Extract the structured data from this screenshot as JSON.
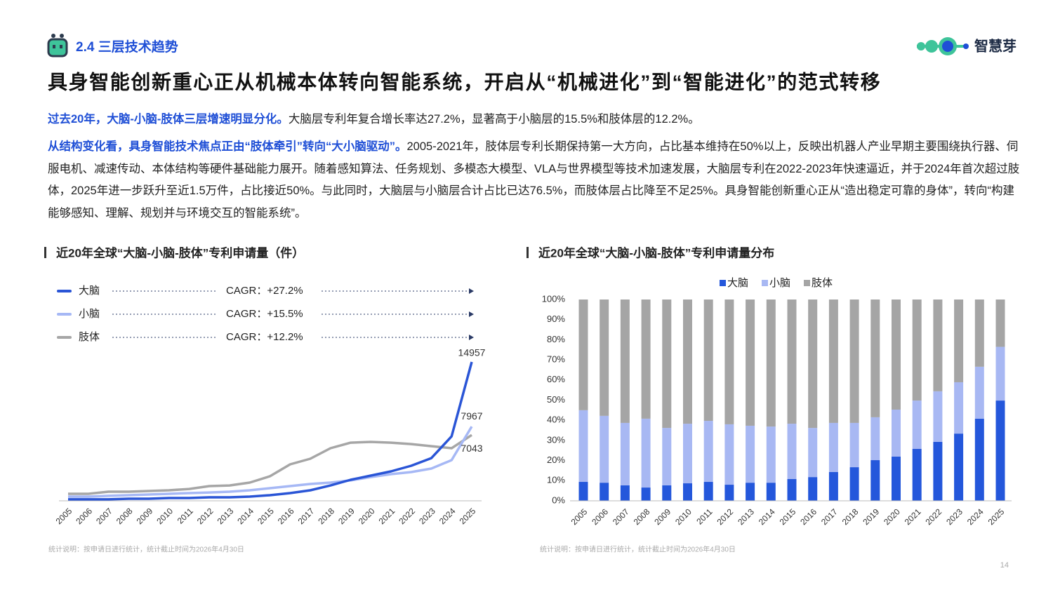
{
  "header": {
    "section": "2.4 三层技术趋势",
    "logo": "智慧芽",
    "title": "具身智能创新重心正从机械本体转向智能系统，开启从“机械进化”到“智能进化”的范式转移"
  },
  "paragraphs": [
    {
      "lead": "过去20年，大脑-小脑-肢体三层增速明显分化。",
      "body": "大脑层专利年复合增长率达27.2%，显著高于小脑层的15.5%和肢体层的12.2%。"
    },
    {
      "lead": "从结构变化看，具身智能技术焦点正由“肢体牵引”转向“大小脑驱动”。",
      "body": "2005-2021年，肢体层专利长期保持第一大方向，占比基本维持在50%以上，反映出机器人产业早期主要围绕执行器、伺服电机、减速传动、本体结构等硬件基础能力展开。随着感知算法、任务规划、多模态大模型、VLA与世界模型等技术加速发展，大脑层专利在2022-2023年快速逼近，并于2024年首次超过肢体，2025年进一步跃升至近1.5万件，占比接近50%。与此同时，大脑层与小脑层合计占比已达76.5%，而肢体层占比降至不足25%。具身智能创新重心正从“造出稳定可靠的身体”，转向“构建能够感知、理解、规划并与环境交互的智能系统”。"
    }
  ],
  "page_number": 14,
  "chart_data": [
    {
      "type": "line",
      "title": "近20年全球“大脑-小脑-肢体”专利申请量（件）",
      "categories": [
        "2005",
        "2006",
        "2007",
        "2008",
        "2009",
        "2010",
        "2011",
        "2012",
        "2013",
        "2014",
        "2015",
        "2016",
        "2017",
        "2018",
        "2019",
        "2020",
        "2021",
        "2022",
        "2023",
        "2024",
        "2025"
      ],
      "series": [
        {
          "name": "大脑",
          "cagr": "CAGR：+27.2%",
          "color": "#2a55d6",
          "values": [
            80,
            80,
            80,
            150,
            150,
            230,
            230,
            300,
            300,
            380,
            530,
            760,
            1060,
            1590,
            2200,
            2660,
            3110,
            3720,
            4550,
            6900,
            14957
          ]
        },
        {
          "name": "小脑",
          "cagr": "CAGR：+15.5%",
          "color": "#a6b8f5",
          "values": [
            380,
            380,
            460,
            530,
            610,
            680,
            760,
            830,
            910,
            1060,
            1290,
            1520,
            1750,
            1900,
            2130,
            2500,
            2810,
            3040,
            3420,
            4330,
            7967
          ]
        },
        {
          "name": "肢体",
          "cagr": "CAGR：+12.2%",
          "color": "#a6a6a6",
          "values": [
            680,
            680,
            910,
            910,
            990,
            1060,
            1210,
            1520,
            1590,
            1900,
            2580,
            3870,
            4480,
            5620,
            6220,
            6300,
            6220,
            6070,
            5840,
            5620,
            7043
          ]
        }
      ],
      "note": "统计说明：按申请日进行统计，统计截止时间为2026年4月30日"
    },
    {
      "type": "bar",
      "stacked": true,
      "title": "近20年全球“大脑-小脑-肢体”专利申请量分布",
      "categories": [
        "2005",
        "2006",
        "2007",
        "2008",
        "2009",
        "2010",
        "2011",
        "2012",
        "2013",
        "2014",
        "2015",
        "2016",
        "2017",
        "2018",
        "2019",
        "2020",
        "2021",
        "2022",
        "2023",
        "2024",
        "2025"
      ],
      "series": [
        {
          "name": "大脑",
          "color": "#2457db",
          "values": [
            9.4,
            9.0,
            7.7,
            6.6,
            7.7,
            8.7,
            9.4,
            8.0,
            9.0,
            9.0,
            10.8,
            11.8,
            14.3,
            16.7,
            20.2,
            22.0,
            25.8,
            29.3,
            33.4,
            40.8,
            49.8
          ]
        },
        {
          "name": "小脑",
          "color": "#a8b8f3",
          "values": [
            35.6,
            33.2,
            31.0,
            34.2,
            28.5,
            29.6,
            30.3,
            30.0,
            28.3,
            27.9,
            27.5,
            24.4,
            24.4,
            22.0,
            21.3,
            23.3,
            24.0,
            25.1,
            25.5,
            25.8,
            26.7
          ]
        },
        {
          "name": "肢体",
          "color": "#a5a5a5",
          "values": [
            55.0,
            57.8,
            61.3,
            59.2,
            63.8,
            61.7,
            60.3,
            62.0,
            62.7,
            63.1,
            61.7,
            63.8,
            61.3,
            61.3,
            58.5,
            54.7,
            50.2,
            45.6,
            41.1,
            33.4,
            23.5
          ]
        }
      ],
      "ylim": [
        0,
        100
      ],
      "yticks": [
        {
          "value": 0,
          "label": "0%"
        },
        {
          "value": 10,
          "label": "10%"
        },
        {
          "value": 20,
          "label": "20%"
        },
        {
          "value": 30,
          "label": "30%"
        },
        {
          "value": 40,
          "label": "40%"
        },
        {
          "value": 50,
          "label": "50%"
        },
        {
          "value": 60,
          "label": "60%"
        },
        {
          "value": 70,
          "label": "70%"
        },
        {
          "value": 80,
          "label": "80%"
        },
        {
          "value": 90,
          "label": "90%"
        },
        {
          "value": 100,
          "label": "100%"
        }
      ],
      "legend": "top",
      "note": "统计说明：按申请日进行统计，统计截止时间为2026年4月30日"
    }
  ]
}
